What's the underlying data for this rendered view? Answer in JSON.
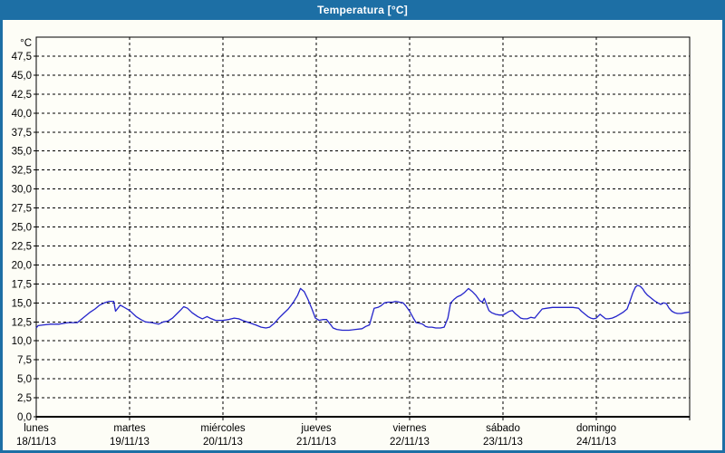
{
  "window": {
    "title": "Temperatura [°C]"
  },
  "colors": {
    "titlebar_bg": "#1D6FA5",
    "titlebar_text": "#FFFFFF",
    "window_border": "#1D6FA5",
    "background": "#FDFDF6",
    "plot_background": "#FEFEF8",
    "grid": "#000000",
    "frame": "#000000",
    "axis_text": "#000000",
    "series_line": "#2424CB"
  },
  "chart_data": {
    "type": "line",
    "title": "Temperatura [°C]",
    "y_unit_label": "°C",
    "ylim": [
      0,
      50
    ],
    "y_step": 2.5,
    "y_tick_labels_bottom_to_top": [
      "0,0",
      "2,5",
      "5,0",
      "7,5",
      "10,0",
      "12,5",
      "15,0",
      "17,5",
      "20,0",
      "22,5",
      "25,0",
      "27,5",
      "30,0",
      "32,5",
      "35,0",
      "37,5",
      "40,0",
      "42,5",
      "45,0",
      "47,5"
    ],
    "xlim_days": [
      0,
      7
    ],
    "x_days": [
      {
        "label": "lunes",
        "date": "18/11/13"
      },
      {
        "label": "martes",
        "date": "19/11/13"
      },
      {
        "label": "miércoles",
        "date": "20/11/13"
      },
      {
        "label": "jueves",
        "date": "21/11/13"
      },
      {
        "label": "viernes",
        "date": "22/11/13"
      },
      {
        "label": "sábado",
        "date": "23/11/13"
      },
      {
        "label": "domingo",
        "date": "24/11/13"
      }
    ],
    "grid": "dashed",
    "legend": "none",
    "series": [
      {
        "name": "Temperatura",
        "color": "#2424CB",
        "points": [
          [
            0.0,
            11.7
          ],
          [
            0.02,
            12.0
          ],
          [
            0.08,
            12.1
          ],
          [
            0.15,
            12.2
          ],
          [
            0.24,
            12.2
          ],
          [
            0.34,
            12.4
          ],
          [
            0.44,
            12.4
          ],
          [
            0.49,
            12.9
          ],
          [
            0.58,
            13.8
          ],
          [
            0.63,
            14.2
          ],
          [
            0.68,
            14.7
          ],
          [
            0.73,
            15.0
          ],
          [
            0.78,
            15.2
          ],
          [
            0.83,
            15.2
          ],
          [
            0.85,
            13.9
          ],
          [
            0.9,
            14.7
          ],
          [
            0.93,
            14.5
          ],
          [
            1.0,
            14.0
          ],
          [
            1.07,
            13.2
          ],
          [
            1.12,
            12.8
          ],
          [
            1.17,
            12.5
          ],
          [
            1.24,
            12.4
          ],
          [
            1.31,
            12.2
          ],
          [
            1.36,
            12.5
          ],
          [
            1.41,
            12.6
          ],
          [
            1.46,
            13.0
          ],
          [
            1.51,
            13.6
          ],
          [
            1.55,
            14.1
          ],
          [
            1.58,
            14.5
          ],
          [
            1.62,
            14.3
          ],
          [
            1.67,
            13.7
          ],
          [
            1.73,
            13.2
          ],
          [
            1.78,
            12.9
          ],
          [
            1.83,
            13.2
          ],
          [
            1.86,
            13.0
          ],
          [
            1.92,
            12.7
          ],
          [
            2.0,
            12.7
          ],
          [
            2.06,
            12.8
          ],
          [
            2.12,
            13.0
          ],
          [
            2.17,
            12.9
          ],
          [
            2.21,
            12.7
          ],
          [
            2.28,
            12.4
          ],
          [
            2.35,
            12.1
          ],
          [
            2.41,
            11.8
          ],
          [
            2.46,
            11.7
          ],
          [
            2.5,
            11.8
          ],
          [
            2.55,
            12.3
          ],
          [
            2.6,
            13.0
          ],
          [
            2.65,
            13.6
          ],
          [
            2.7,
            14.2
          ],
          [
            2.75,
            15.0
          ],
          [
            2.8,
            16.0
          ],
          [
            2.83,
            16.9
          ],
          [
            2.87,
            16.5
          ],
          [
            2.91,
            15.5
          ],
          [
            2.95,
            14.3
          ],
          [
            2.99,
            13.0
          ],
          [
            3.03,
            12.7
          ],
          [
            3.07,
            12.8
          ],
          [
            3.11,
            12.8
          ],
          [
            3.15,
            12.2
          ],
          [
            3.18,
            11.7
          ],
          [
            3.22,
            11.5
          ],
          [
            3.28,
            11.4
          ],
          [
            3.35,
            11.4
          ],
          [
            3.42,
            11.5
          ],
          [
            3.49,
            11.6
          ],
          [
            3.53,
            11.9
          ],
          [
            3.57,
            12.1
          ],
          [
            3.59,
            13.0
          ],
          [
            3.62,
            14.3
          ],
          [
            3.66,
            14.4
          ],
          [
            3.69,
            14.6
          ],
          [
            3.73,
            15.0
          ],
          [
            3.77,
            15.1
          ],
          [
            3.82,
            15.1
          ],
          [
            3.85,
            15.2
          ],
          [
            3.89,
            15.1
          ],
          [
            3.93,
            15.0
          ],
          [
            3.96,
            14.6
          ],
          [
            4.0,
            13.9
          ],
          [
            4.04,
            13.0
          ],
          [
            4.07,
            12.4
          ],
          [
            4.11,
            12.3
          ],
          [
            4.14,
            12.2
          ],
          [
            4.17,
            11.9
          ],
          [
            4.2,
            11.8
          ],
          [
            4.24,
            11.8
          ],
          [
            4.28,
            11.7
          ],
          [
            4.33,
            11.7
          ],
          [
            4.37,
            11.8
          ],
          [
            4.41,
            13.0
          ],
          [
            4.44,
            15.0
          ],
          [
            4.48,
            15.5
          ],
          [
            4.51,
            15.8
          ],
          [
            4.55,
            16.0
          ],
          [
            4.59,
            16.4
          ],
          [
            4.63,
            16.9
          ],
          [
            4.67,
            16.5
          ],
          [
            4.71,
            16.0
          ],
          [
            4.75,
            15.3
          ],
          [
            4.78,
            15.1
          ],
          [
            4.8,
            15.6
          ],
          [
            4.83,
            14.6
          ],
          [
            4.85,
            14.0
          ],
          [
            4.88,
            13.7
          ],
          [
            4.92,
            13.5
          ],
          [
            4.96,
            13.4
          ],
          [
            5.0,
            13.4
          ],
          [
            5.03,
            13.6
          ],
          [
            5.07,
            13.9
          ],
          [
            5.1,
            14.0
          ],
          [
            5.13,
            13.6
          ],
          [
            5.16,
            13.3
          ],
          [
            5.19,
            13.0
          ],
          [
            5.22,
            12.9
          ],
          [
            5.26,
            12.9
          ],
          [
            5.3,
            13.1
          ],
          [
            5.34,
            13.0
          ],
          [
            5.38,
            13.6
          ],
          [
            5.42,
            14.2
          ],
          [
            5.47,
            14.3
          ],
          [
            5.53,
            14.4
          ],
          [
            5.61,
            14.4
          ],
          [
            5.68,
            14.4
          ],
          [
            5.75,
            14.4
          ],
          [
            5.81,
            14.3
          ],
          [
            5.84,
            13.9
          ],
          [
            5.87,
            13.6
          ],
          [
            5.91,
            13.2
          ],
          [
            5.94,
            13.0
          ],
          [
            5.97,
            12.9
          ],
          [
            6.0,
            13.0
          ],
          [
            6.04,
            13.5
          ],
          [
            6.07,
            13.2
          ],
          [
            6.1,
            12.9
          ],
          [
            6.13,
            12.9
          ],
          [
            6.17,
            13.0
          ],
          [
            6.21,
            13.2
          ],
          [
            6.25,
            13.5
          ],
          [
            6.29,
            13.8
          ],
          [
            6.33,
            14.2
          ],
          [
            6.36,
            15.2
          ],
          [
            6.39,
            16.3
          ],
          [
            6.42,
            17.1
          ],
          [
            6.44,
            17.3
          ],
          [
            6.47,
            17.2
          ],
          [
            6.5,
            16.8
          ],
          [
            6.52,
            16.4
          ],
          [
            6.55,
            16.0
          ],
          [
            6.58,
            15.7
          ],
          [
            6.62,
            15.3
          ],
          [
            6.66,
            15.0
          ],
          [
            6.69,
            14.8
          ],
          [
            6.72,
            15.0
          ],
          [
            6.75,
            14.9
          ],
          [
            6.78,
            14.3
          ],
          [
            6.81,
            13.9
          ],
          [
            6.84,
            13.7
          ],
          [
            6.87,
            13.6
          ],
          [
            6.91,
            13.6
          ],
          [
            6.95,
            13.7
          ],
          [
            7.0,
            13.8
          ]
        ]
      }
    ]
  }
}
